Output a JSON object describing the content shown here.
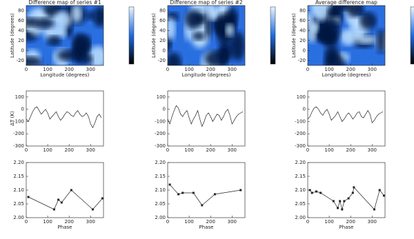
{
  "chart_data": [
    {
      "type": "heatmap",
      "title": "Difference map of series #1",
      "xlabel": "Longitude (degrees)",
      "ylabel": "Latitude (degrees)",
      "xlim": [
        0,
        360
      ],
      "ylim": [
        -30,
        90
      ],
      "xticks": [
        0,
        100,
        200,
        300
      ],
      "yticks": [
        -20,
        0,
        20,
        40,
        60,
        80
      ]
    },
    {
      "type": "heatmap",
      "title": "Difference map of series #2",
      "xlabel": "Longitude (degrees)",
      "ylabel": "Latitude (degrees)",
      "xlim": [
        0,
        360
      ],
      "ylim": [
        -30,
        90
      ],
      "xticks": [
        0,
        100,
        200,
        300
      ],
      "yticks": [
        -20,
        0,
        20,
        40,
        60,
        80
      ]
    },
    {
      "type": "heatmap",
      "title": "Average difference map",
      "xlabel": "Longitude (degrees)",
      "ylabel": "Latitude (degrees)",
      "xlim": [
        0,
        360
      ],
      "ylim": [
        -30,
        90
      ],
      "xticks": [
        0,
        100,
        200,
        300
      ],
      "yticks": [
        -20,
        0,
        20,
        40,
        60,
        80
      ]
    },
    {
      "type": "line",
      "ylabel": "ΔT (K)",
      "xlim": [
        0,
        360
      ],
      "ylim": [
        -300,
        150
      ],
      "xticks": [
        0,
        100,
        200,
        300
      ],
      "yticks": [
        -300,
        -200,
        -100,
        0,
        100
      ],
      "markers": false,
      "x": [
        0,
        10,
        20,
        30,
        40,
        50,
        60,
        70,
        80,
        90,
        100,
        110,
        120,
        130,
        140,
        150,
        160,
        170,
        180,
        190,
        200,
        210,
        220,
        230,
        240,
        250,
        260,
        270,
        280,
        290,
        300,
        310,
        320,
        330,
        340,
        350
      ],
      "values": [
        -80,
        -100,
        -60,
        -20,
        10,
        20,
        -10,
        -40,
        -20,
        0,
        -30,
        -80,
        -60,
        -40,
        -20,
        -60,
        -90,
        -70,
        -40,
        -20,
        -30,
        -50,
        -60,
        -30,
        -10,
        -40,
        -60,
        -50,
        -30,
        -60,
        -120,
        -150,
        -110,
        -60,
        -40,
        -70
      ]
    },
    {
      "type": "line",
      "xlim": [
        0,
        360
      ],
      "ylim": [
        -300,
        150
      ],
      "xticks": [
        0,
        100,
        200,
        300
      ],
      "yticks": [
        -300,
        -200,
        -100,
        0,
        100
      ],
      "markers": false,
      "x": [
        0,
        10,
        20,
        30,
        40,
        50,
        60,
        70,
        80,
        90,
        100,
        110,
        120,
        130,
        140,
        150,
        160,
        170,
        180,
        190,
        200,
        210,
        220,
        230,
        240,
        250,
        260,
        270,
        280,
        290,
        300,
        310,
        320,
        330,
        340,
        350
      ],
      "values": [
        -80,
        -120,
        -60,
        -10,
        30,
        10,
        -40,
        -60,
        -30,
        -10,
        -70,
        -120,
        -80,
        -50,
        -10,
        -80,
        -140,
        -100,
        -50,
        -30,
        -60,
        -100,
        -70,
        -40,
        -50,
        -90,
        -60,
        -20,
        0,
        -50,
        -120,
        -90,
        -60,
        -40,
        -30,
        -20
      ]
    },
    {
      "type": "line",
      "xlim": [
        0,
        360
      ],
      "ylim": [
        -300,
        150
      ],
      "xticks": [
        0,
        100,
        200,
        300
      ],
      "yticks": [
        -300,
        -200,
        -100,
        0,
        100
      ],
      "markers": false,
      "x": [
        0,
        10,
        20,
        30,
        40,
        50,
        60,
        70,
        80,
        90,
        100,
        110,
        120,
        130,
        140,
        150,
        160,
        170,
        180,
        190,
        200,
        210,
        220,
        230,
        240,
        250,
        260,
        270,
        280,
        290,
        300,
        310,
        320,
        330,
        340,
        350
      ],
      "values": [
        -80,
        -60,
        -20,
        10,
        20,
        0,
        -30,
        -50,
        -20,
        0,
        -40,
        -90,
        -70,
        -50,
        -20,
        -60,
        -100,
        -80,
        -50,
        -30,
        -50,
        -80,
        -60,
        -30,
        -20,
        -60,
        -70,
        -40,
        -10,
        -40,
        -110,
        -90,
        -60,
        -40,
        -30,
        -20
      ]
    },
    {
      "type": "line",
      "xlabel": "Phase",
      "xlim": [
        0,
        360
      ],
      "ylim": [
        2.0,
        2.2
      ],
      "xticks": [
        0,
        100,
        200,
        300
      ],
      "yticks": [
        {
          "value": 2.0,
          "label": "2.00"
        },
        {
          "value": 2.05,
          "label": "2.05"
        },
        {
          "value": 2.1,
          "label": "2.10"
        },
        {
          "value": 2.15,
          "label": "2.15"
        },
        {
          "value": 2.2,
          "label": "2.20"
        }
      ],
      "markers": true,
      "x": [
        10,
        130,
        150,
        165,
        210,
        310,
        355
      ],
      "values": [
        2.075,
        2.03,
        2.065,
        2.055,
        2.1,
        2.03,
        2.07
      ]
    },
    {
      "type": "line",
      "xlabel": "Phase",
      "xlim": [
        0,
        360
      ],
      "ylim": [
        2.0,
        2.2
      ],
      "xticks": [
        0,
        100,
        200,
        300
      ],
      "yticks": [
        {
          "value": 2.0,
          "label": "2.00"
        },
        {
          "value": 2.05,
          "label": "2.05"
        },
        {
          "value": 2.1,
          "label": "2.10"
        },
        {
          "value": 2.15,
          "label": "2.15"
        },
        {
          "value": 2.2,
          "label": "2.20"
        }
      ],
      "markers": true,
      "x": [
        10,
        50,
        70,
        120,
        160,
        220,
        340
      ],
      "values": [
        2.12,
        2.085,
        2.09,
        2.09,
        2.045,
        2.085,
        2.1
      ]
    },
    {
      "type": "line",
      "xlabel": "Phase",
      "xlim": [
        0,
        360
      ],
      "ylim": [
        2.0,
        2.2
      ],
      "xticks": [
        0,
        100,
        200,
        300
      ],
      "yticks": [
        {
          "value": 2.0,
          "label": "2.00"
        },
        {
          "value": 2.05,
          "label": "2.05"
        },
        {
          "value": 2.1,
          "label": "2.10"
        },
        {
          "value": 2.15,
          "label": "2.15"
        },
        {
          "value": 2.2,
          "label": "2.20"
        }
      ],
      "markers": true,
      "x": [
        10,
        20,
        40,
        60,
        120,
        140,
        150,
        160,
        170,
        190,
        210,
        215,
        310,
        335,
        355
      ],
      "values": [
        2.1,
        2.09,
        2.095,
        2.09,
        2.06,
        2.035,
        2.06,
        2.03,
        2.06,
        2.07,
        2.09,
        2.11,
        2.03,
        2.1,
        2.08
      ]
    }
  ]
}
